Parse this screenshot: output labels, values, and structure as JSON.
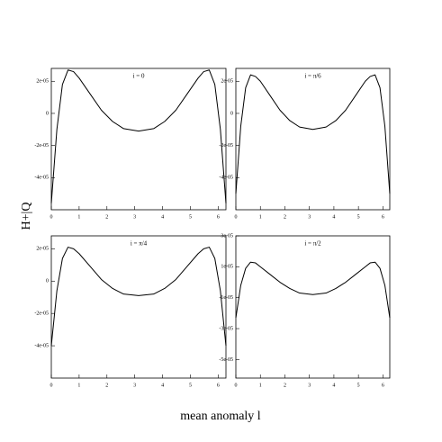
{
  "xlabel": "mean anomaly l",
  "ylabel": "H+|Q",
  "chart_data": [
    {
      "type": "line",
      "annotation": "i = 0",
      "x": [
        0,
        0.2,
        0.4,
        0.6,
        0.8,
        1.0,
        1.4,
        1.8,
        2.2,
        2.6,
        3.14,
        3.68,
        4.08,
        4.48,
        4.88,
        5.28,
        5.48,
        5.68,
        5.88,
        6.08,
        6.28
      ],
      "series": [
        {
          "color": "#000000",
          "values": [
            -5.6e-05,
            -1e-05,
            1.8e-05,
            2.7e-05,
            2.6e-05,
            2.2e-05,
            1.2e-05,
            2e-06,
            -5e-06,
            -9.5e-06,
            -1.1e-05,
            -9.5e-06,
            -5e-06,
            2e-06,
            1.2e-05,
            2.2e-05,
            2.6e-05,
            2.7e-05,
            1.8e-05,
            -1e-05,
            -5.6e-05
          ]
        }
      ],
      "xlim": [
        0,
        6.28
      ],
      "xticks": [
        0,
        1,
        2,
        3,
        4,
        5,
        6
      ],
      "ylim": [
        -6e-05,
        2.8e-05
      ],
      "yticks": [
        {
          "value": 2e-05,
          "label": "2e-05"
        },
        0,
        {
          "value": -2e-05,
          "label": "-2e-05"
        },
        {
          "value": -4e-05,
          "label": "-4e-05"
        }
      ]
    },
    {
      "type": "line",
      "annotation": "i = π/6",
      "x": [
        0,
        0.2,
        0.4,
        0.6,
        0.8,
        1.0,
        1.4,
        1.8,
        2.2,
        2.6,
        3.14,
        3.68,
        4.08,
        4.48,
        4.88,
        5.28,
        5.48,
        5.68,
        5.88,
        6.08,
        6.28
      ],
      "series": [
        {
          "color": "#000000",
          "values": [
            -5e-05,
            -8e-06,
            1.6e-05,
            2.4e-05,
            2.3e-05,
            2e-05,
            1.1e-05,
            2e-06,
            -4.5e-06,
            -8.5e-06,
            -1e-05,
            -8.5e-06,
            -4.5e-06,
            2e-06,
            1.1e-05,
            2e-05,
            2.3e-05,
            2.4e-05,
            1.6e-05,
            -8e-06,
            -5e-05
          ]
        }
      ],
      "xlim": [
        0,
        6.28
      ],
      "xticks": [
        0,
        1,
        2,
        3,
        4,
        5,
        6
      ],
      "ylim": [
        -6e-05,
        2.8e-05
      ],
      "yticks": [
        {
          "value": 2e-05,
          "label": "2e-05"
        },
        0,
        {
          "value": -2e-05,
          "label": "-2e-05"
        },
        {
          "value": -4e-05,
          "label": "-4e-05"
        }
      ]
    },
    {
      "type": "line",
      "annotation": "i = π/4",
      "x": [
        0,
        0.2,
        0.4,
        0.6,
        0.8,
        1.0,
        1.4,
        1.8,
        2.2,
        2.6,
        3.14,
        3.68,
        4.08,
        4.48,
        4.88,
        5.28,
        5.48,
        5.68,
        5.88,
        6.08,
        6.28
      ],
      "series": [
        {
          "color": "#000000",
          "values": [
            -4e-05,
            -6e-06,
            1.4e-05,
            2.1e-05,
            2e-05,
            1.7e-05,
            9e-06,
            1e-06,
            -4.5e-06,
            -8e-06,
            -9e-06,
            -8e-06,
            -4.5e-06,
            1e-06,
            9e-06,
            1.7e-05,
            2e-05,
            2.1e-05,
            1.4e-05,
            -6e-06,
            -4e-05
          ]
        }
      ],
      "xlim": [
        0,
        6.28
      ],
      "xticks": [
        0,
        1,
        2,
        3,
        4,
        5,
        6
      ],
      "ylim": [
        -6e-05,
        2.8e-05
      ],
      "yticks": [
        {
          "value": 2e-05,
          "label": "2e-05"
        },
        0,
        {
          "value": -2e-05,
          "label": "-2e-05"
        },
        {
          "value": -4e-05,
          "label": "-4e-05"
        }
      ]
    },
    {
      "type": "line",
      "annotation": "i = π/2",
      "x": [
        0,
        0.2,
        0.4,
        0.6,
        0.8,
        1.0,
        1.4,
        1.8,
        2.2,
        2.6,
        3.14,
        3.68,
        4.08,
        4.48,
        4.88,
        5.28,
        5.48,
        5.68,
        5.88,
        6.08,
        6.28
      ],
      "series": [
        {
          "color": "#000000",
          "values": [
            -2.3e-05,
            -2e-06,
            9e-06,
            1.3e-05,
            1.25e-05,
            1e-05,
            5e-06,
            0,
            -4e-06,
            -7e-06,
            -8e-06,
            -7e-06,
            -4e-06,
            0,
            5e-06,
            1e-05,
            1.25e-05,
            1.3e-05,
            9e-06,
            -2e-06,
            -2.3e-05
          ]
        }
      ],
      "xlim": [
        0,
        6.28
      ],
      "xticks": [
        0,
        1,
        2,
        3,
        4,
        5,
        6
      ],
      "ylim": [
        -6.2e-05,
        3e-05
      ],
      "yticks": [
        {
          "value": 3e-05,
          "label": "3e-05"
        },
        {
          "value": 1e-05,
          "label": "1e-05"
        },
        {
          "value": -1e-05,
          "label": "-1e-05"
        },
        {
          "value": -3e-05,
          "label": "-3e-05"
        },
        {
          "value": -5e-05,
          "label": "-5e-05"
        }
      ]
    }
  ]
}
